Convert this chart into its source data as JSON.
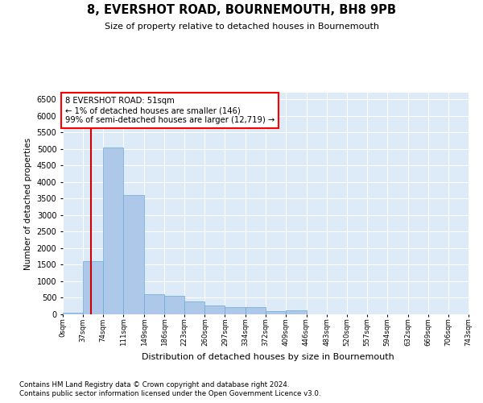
{
  "title": "8, EVERSHOT ROAD, BOURNEMOUTH, BH8 9PB",
  "subtitle": "Size of property relative to detached houses in Bournemouth",
  "xlabel": "Distribution of detached houses by size in Bournemouth",
  "ylabel": "Number of detached properties",
  "footer1": "Contains HM Land Registry data © Crown copyright and database right 2024.",
  "footer2": "Contains public sector information licensed under the Open Government Licence v3.0.",
  "annotation_line1": "8 EVERSHOT ROAD: 51sqm",
  "annotation_line2": "← 1% of detached houses are smaller (146)",
  "annotation_line3": "99% of semi-detached houses are larger (12,719) →",
  "bar_color": "#adc8e8",
  "bar_edge_color": "#6aaad4",
  "bg_color": "#ddeaf7",
  "red_line_color": "#cc0000",
  "red_line_x": 51,
  "bin_edges": [
    0,
    37,
    74,
    111,
    149,
    186,
    223,
    260,
    297,
    334,
    372,
    409,
    446,
    483,
    520,
    557,
    594,
    632,
    669,
    706,
    743
  ],
  "bar_heights": [
    50,
    1600,
    5050,
    3600,
    620,
    550,
    390,
    280,
    230,
    210,
    90,
    120,
    0,
    0,
    0,
    0,
    0,
    0,
    0,
    0
  ],
  "ylim": [
    0,
    6700
  ],
  "yticks": [
    0,
    500,
    1000,
    1500,
    2000,
    2500,
    3000,
    3500,
    4000,
    4500,
    5000,
    5500,
    6000,
    6500
  ],
  "figsize": [
    6.0,
    5.0
  ],
  "dpi": 100
}
